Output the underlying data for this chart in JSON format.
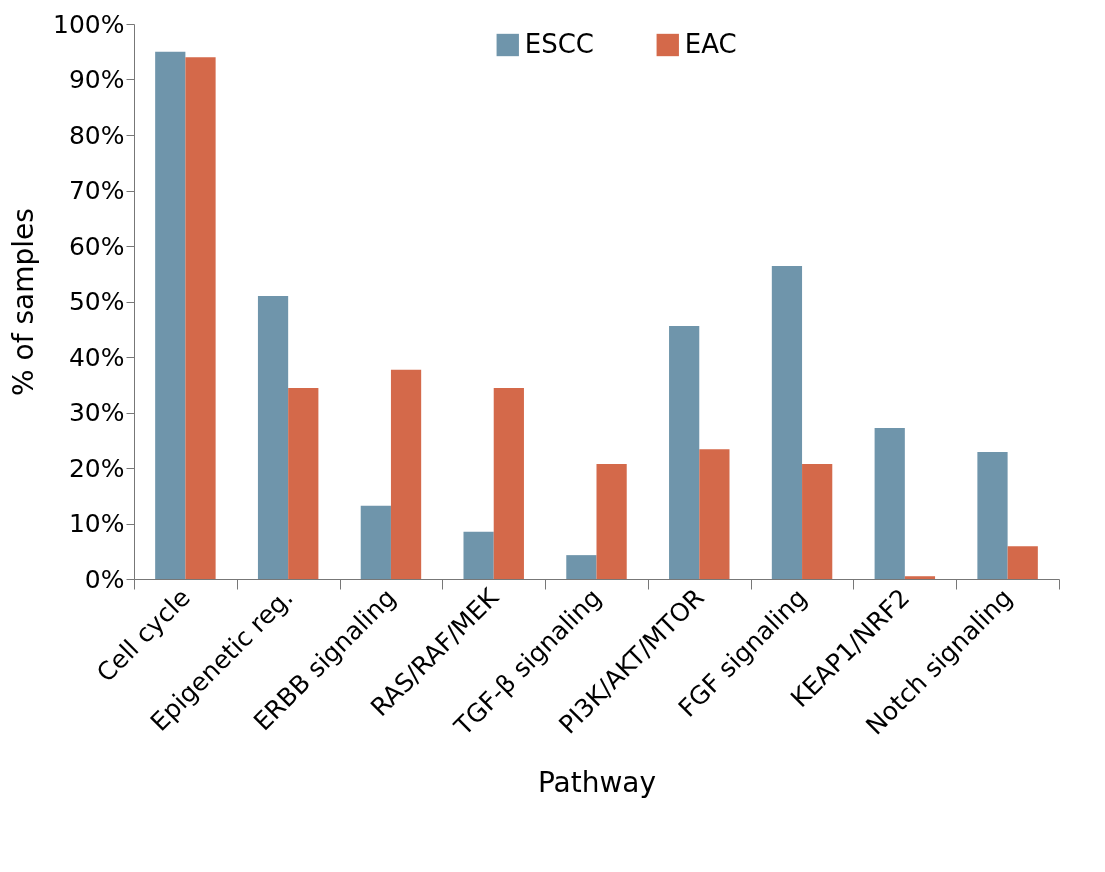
{
  "chart_data": {
    "type": "bar",
    "xlabel": "Pathway",
    "ylabel": "% of samples",
    "categories": [
      "Cell cycle",
      "Epigenetic reg.",
      "ERBB signaling",
      "RAS/RAF/MEK",
      "TGF-β signaling",
      "PI3K/AKT/MTOR",
      "FGF signaling",
      "KEAP1/NRF2",
      "Notch signaling"
    ],
    "series": [
      {
        "name": "ESCC",
        "color": "#6f95ab",
        "values": [
          95,
          51,
          13.2,
          8.5,
          4.3,
          45.6,
          56.4,
          27.2,
          22.9
        ]
      },
      {
        "name": "EAC",
        "color": "#d4694a",
        "values": [
          94,
          34.4,
          37.7,
          34.4,
          20.7,
          23.4,
          20.7,
          0.5,
          5.9
        ]
      }
    ],
    "ylim": [
      0,
      100
    ],
    "yticks": [
      {
        "value": 0,
        "label": "0%"
      },
      {
        "value": 10,
        "label": "10%"
      },
      {
        "value": 20,
        "label": "20%"
      },
      {
        "value": 30,
        "label": "30%"
      },
      {
        "value": 40,
        "label": "40%"
      },
      {
        "value": 50,
        "label": "50%"
      },
      {
        "value": 60,
        "label": "60%"
      },
      {
        "value": 70,
        "label": "70%"
      },
      {
        "value": 80,
        "label": "80%"
      },
      {
        "value": 90,
        "label": "90%"
      },
      {
        "value": 100,
        "label": "100%"
      }
    ],
    "grid": false,
    "legend": "top"
  }
}
